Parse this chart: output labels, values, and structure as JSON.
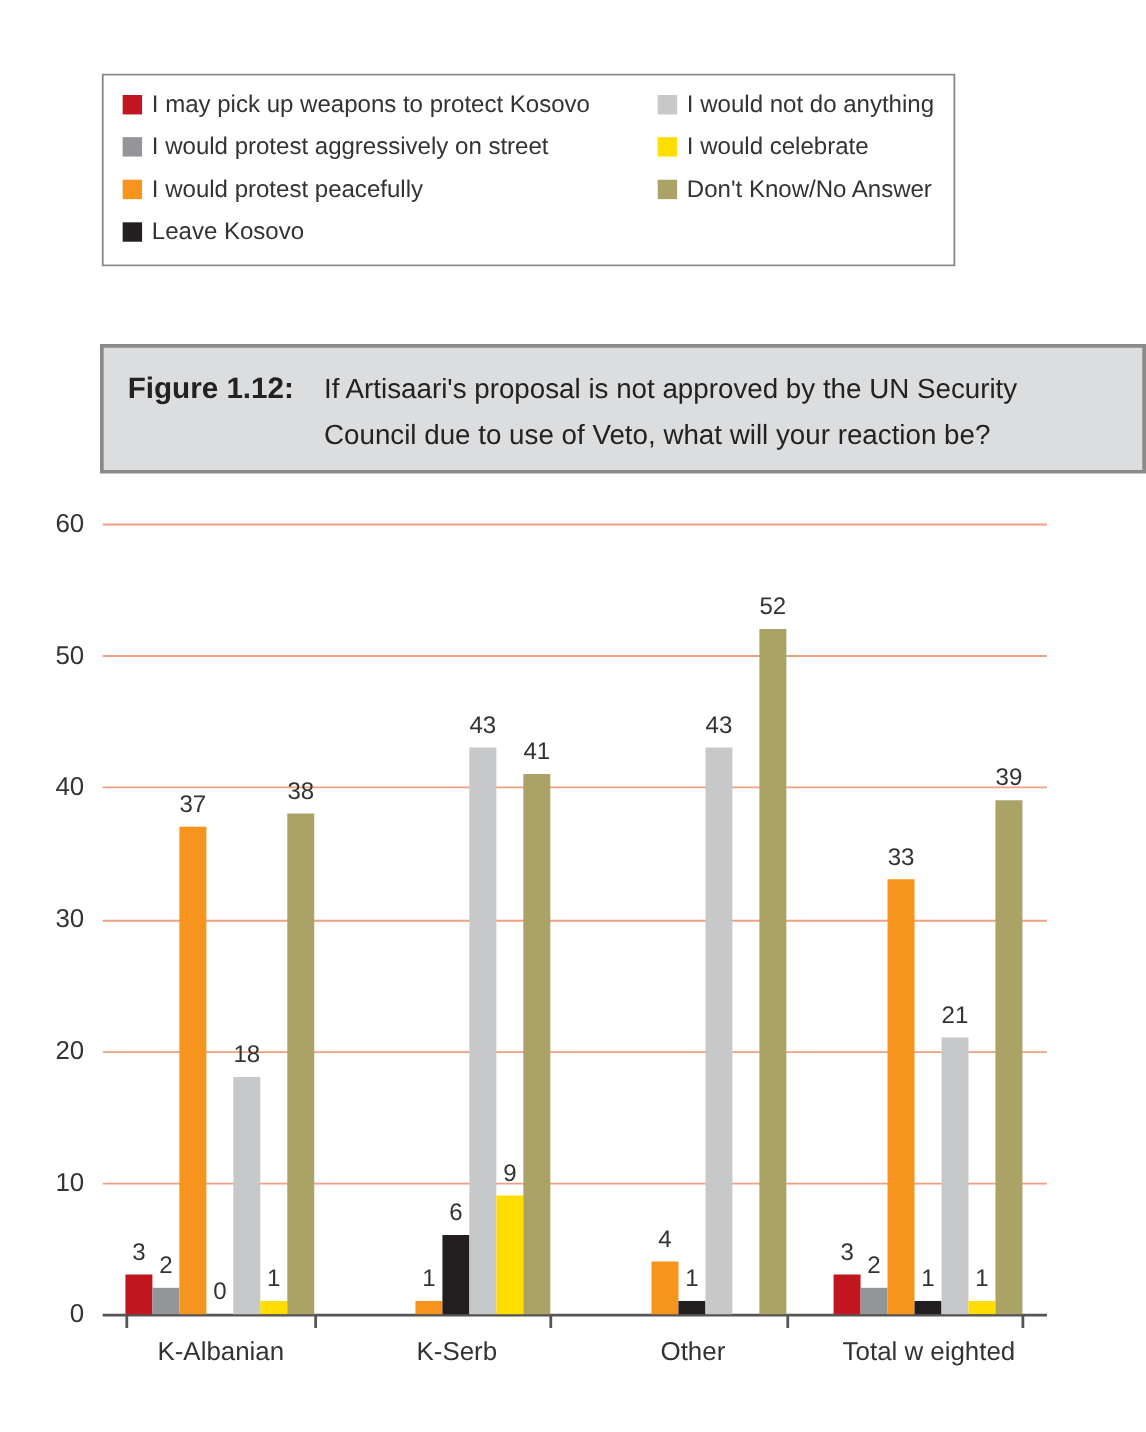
{
  "chart_data": {
    "type": "bar",
    "title": "Figure 1.12:",
    "subtitle": "If Artisaari's proposal is not approved by the UN Security Council due to use of Veto, what will your reaction be?",
    "categories": [
      "K-Albanian",
      "K-Serb",
      "Other",
      "Total w eighted"
    ],
    "series": [
      {
        "name": "I may pick up weapons to protect Kosovo",
        "color": "#c1161f",
        "values": [
          3,
          null,
          null,
          3
        ]
      },
      {
        "name": "I would protest aggressively on street",
        "color": "#939598",
        "values": [
          2,
          null,
          null,
          2
        ]
      },
      {
        "name": "I would protest peacefully",
        "color": "#f7941d",
        "values": [
          37,
          1,
          4,
          33
        ]
      },
      {
        "name": "Leave Kosovo",
        "color": "#231f20",
        "values": [
          0,
          6,
          1,
          1
        ]
      },
      {
        "name": "I would not do anything",
        "color": "#c7c8ca",
        "values": [
          18,
          43,
          43,
          21
        ]
      },
      {
        "name": "I would celebrate",
        "color": "#ffdd00",
        "values": [
          1,
          9,
          null,
          1
        ]
      },
      {
        "name": "Don't Know/No Answer",
        "color": "#aaa365",
        "values": [
          38,
          41,
          52,
          39
        ]
      }
    ],
    "ylim": [
      0,
      60
    ],
    "yticks": [
      0,
      10,
      20,
      30,
      40,
      50,
      60
    ],
    "grid": "y",
    "legend": "top",
    "data_labels": true
  }
}
